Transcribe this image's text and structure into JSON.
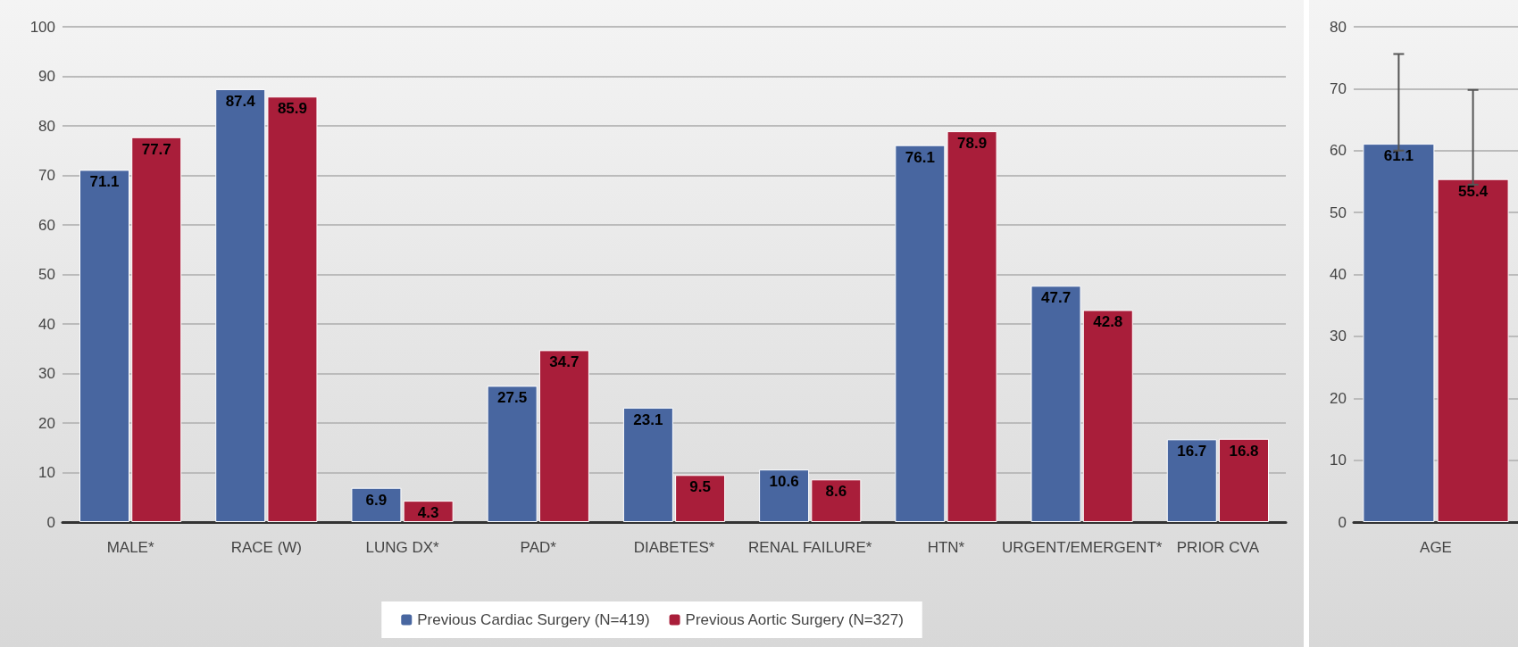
{
  "chart_data": [
    {
      "type": "bar",
      "categories": [
        "MALE*",
        "RACE (W)",
        "LUNG DX*",
        "PAD*",
        "DIABETES*",
        "RENAL FAILURE*",
        "HTN*",
        "URGENT/EMERGENT*",
        "PRIOR CVA"
      ],
      "series": [
        {
          "name": "Previous Cardiac Surgery (N=419)",
          "color": "#4866a0",
          "values": [
            71.1,
            87.4,
            6.9,
            27.5,
            23.1,
            10.6,
            76.1,
            47.7,
            16.7
          ]
        },
        {
          "name": "Previous Aortic Surgery (N=327)",
          "color": "#a91e3a",
          "values": [
            77.7,
            85.9,
            4.3,
            34.7,
            9.5,
            8.6,
            78.9,
            42.8,
            16.8
          ]
        }
      ],
      "ylim": [
        0,
        100
      ],
      "yticks": [
        0,
        10,
        20,
        30,
        40,
        50,
        60,
        70,
        80,
        90,
        100
      ],
      "grid": "y",
      "legend": "bottom",
      "data_labels": true
    },
    {
      "type": "bar",
      "categories": [
        "AGE"
      ],
      "series": [
        {
          "color": "#4866a0",
          "values": [
            61.1
          ],
          "errors": [
            [
              60,
              75.6
            ]
          ]
        },
        {
          "color": "#a91e3a",
          "values": [
            55.4
          ],
          "errors": [
            [
              54.5,
              69.8
            ]
          ]
        }
      ],
      "ylim": [
        0,
        80
      ],
      "yticks": [
        0,
        10,
        20,
        30,
        40,
        50,
        60,
        70,
        80
      ],
      "grid": "y",
      "data_labels": true
    }
  ]
}
